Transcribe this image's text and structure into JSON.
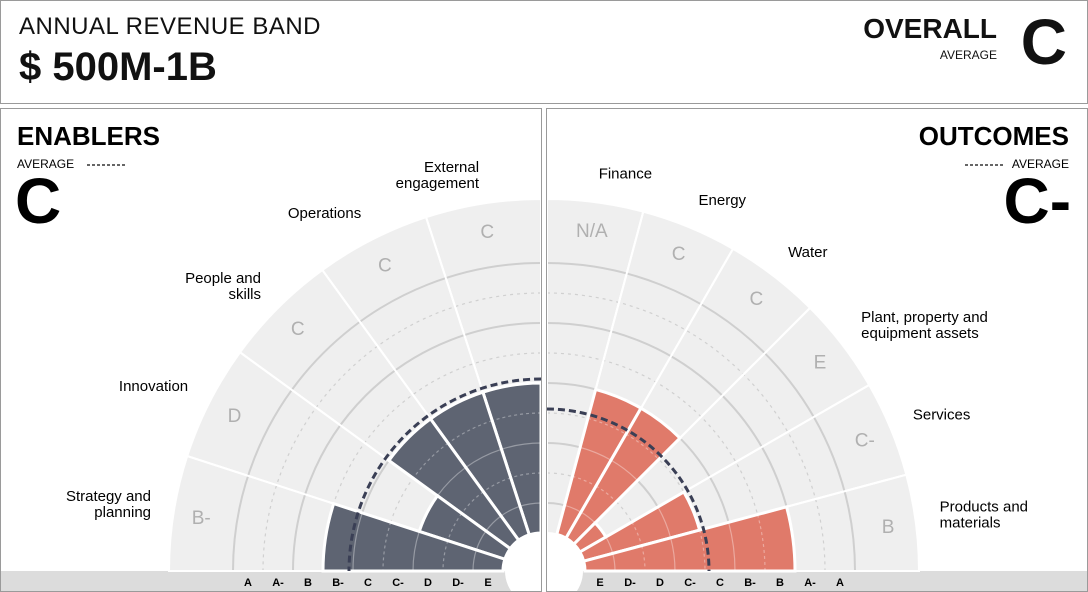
{
  "header": {
    "label": "ANNUAL REVENUE BAND",
    "value": "$ 500M-1B",
    "overall_title": "OVERALL",
    "overall_sub": "AVERAGE",
    "overall_grade": "C"
  },
  "chart_data": [
    {
      "type": "polar-bar",
      "title": "ENABLERS",
      "average_label": "AVERAGE",
      "average_grade": "C",
      "scale": [
        "E",
        "D-",
        "D",
        "C-",
        "C",
        "B-",
        "B",
        "A-",
        "A"
      ],
      "axis_ticks": [
        "A",
        "A-",
        "B",
        "B-",
        "C",
        "C-",
        "D",
        "D-",
        "E"
      ],
      "categories": [
        "Strategy and planning",
        "Innovation",
        "People and skills",
        "Operations",
        "External engagement"
      ],
      "grades": [
        "B-",
        "D",
        "C",
        "C",
        "C"
      ],
      "values": [
        6,
        3,
        5,
        5,
        5
      ],
      "average_value": 5,
      "color": "#5e6472"
    },
    {
      "type": "polar-bar",
      "title": "OUTCOMES",
      "average_label": "AVERAGE",
      "average_grade": "C-",
      "scale": [
        "E",
        "D-",
        "D",
        "C-",
        "C",
        "B-",
        "B",
        "A-",
        "A"
      ],
      "axis_ticks": [
        "E",
        "D-",
        "D",
        "C-",
        "C",
        "B-",
        "B",
        "A-",
        "A"
      ],
      "categories": [
        "Products and materials",
        "Services",
        "Plant, property and equipment assets",
        "Water",
        "Energy",
        "Finance"
      ],
      "grades": [
        "B",
        "C-",
        "E",
        "C",
        "C",
        "N/A"
      ],
      "values": [
        7,
        4,
        1,
        5,
        5,
        0
      ],
      "average_value": 4,
      "color": "#e07a6a"
    }
  ]
}
